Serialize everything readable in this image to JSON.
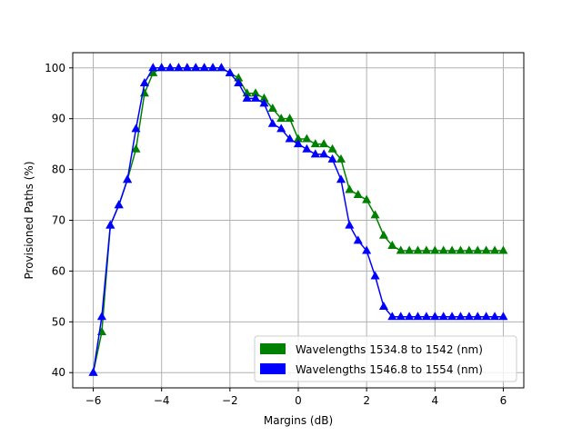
{
  "chart_data": {
    "type": "line",
    "title": "",
    "xlabel": "Margins (dB)",
    "ylabel": "Provisioned Paths (%)",
    "xlim": [
      -6.6,
      6.6
    ],
    "ylim": [
      37,
      103
    ],
    "xticks": [
      -6,
      -4,
      -2,
      0,
      2,
      4,
      6
    ],
    "yticks": [
      40,
      50,
      60,
      70,
      80,
      90,
      100
    ],
    "grid": true,
    "legend_position": "lower-right",
    "marker": "triangle-up",
    "x": [
      -6,
      -5.75,
      -5.5,
      -5.25,
      -5,
      -4.75,
      -4.5,
      -4.25,
      -4,
      -3.75,
      -3.5,
      -3.25,
      -3,
      -2.75,
      -2.5,
      -2.25,
      -2,
      -1.75,
      -1.5,
      -1.25,
      -1,
      -0.75,
      -0.5,
      -0.25,
      0,
      0.25,
      0.5,
      0.75,
      1,
      1.25,
      1.5,
      1.75,
      2,
      2.25,
      2.5,
      2.75,
      3,
      3.25,
      3.5,
      3.75,
      4,
      4.25,
      4.5,
      4.75,
      5,
      5.25,
      5.5,
      5.75,
      6
    ],
    "series": [
      {
        "name": "Wavelengths 1534.8 to 1542 (nm)",
        "color": "#008000",
        "values": [
          40,
          48,
          69,
          73,
          78,
          84,
          95,
          99,
          100,
          100,
          100,
          100,
          100,
          100,
          100,
          100,
          99,
          98,
          95,
          95,
          94,
          92,
          90,
          90,
          86,
          86,
          85,
          85,
          84,
          82,
          76,
          75,
          74,
          71,
          67,
          65,
          64,
          64,
          64,
          64,
          64,
          64,
          64,
          64,
          64,
          64,
          64,
          64,
          64
        ]
      },
      {
        "name": "Wavelengths 1546.8 to 1554 (nm)",
        "color": "#0000ff",
        "values": [
          40,
          51,
          69,
          73,
          78,
          88,
          97,
          100,
          100,
          100,
          100,
          100,
          100,
          100,
          100,
          100,
          99,
          97,
          94,
          94,
          93,
          89,
          88,
          86,
          85,
          84,
          83,
          83,
          82,
          78,
          69,
          66,
          64,
          59,
          53,
          51,
          51,
          51,
          51,
          51,
          51,
          51,
          51,
          51,
          51,
          51,
          51,
          51,
          51
        ]
      }
    ]
  }
}
